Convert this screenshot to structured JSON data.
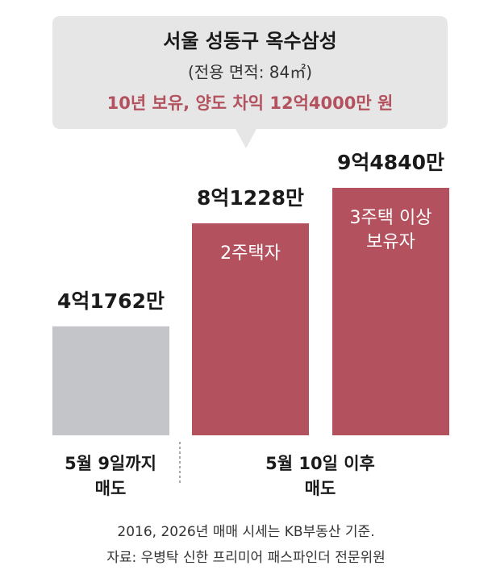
{
  "chart_data": {
    "type": "bar",
    "title": "서울 성동구 옥수삼성",
    "subtitle": "(전용 면적: 84㎡)",
    "annotation": "10년 보유, 양도 차익 12억4000만 원",
    "categories": [
      null,
      [
        "2주택자"
      ],
      [
        "3주택 이상",
        "보유자"
      ]
    ],
    "values": [
      41762,
      81228,
      94840
    ],
    "value_labels": [
      "4억1762만",
      "8억1228만",
      "9억4840만"
    ],
    "colors": [
      "#c4c5c9",
      "#b3525e",
      "#b3525e"
    ],
    "groups": [
      [
        "5월 9일까지",
        "매도"
      ],
      [
        "5월 10일 이후",
        "매도"
      ]
    ],
    "notes": [
      "2016, 2026년 매매 시세는 KB부동산 기준.",
      "자료: 우병탁 신한 프리미어 패스파인더 전문위원"
    ]
  }
}
